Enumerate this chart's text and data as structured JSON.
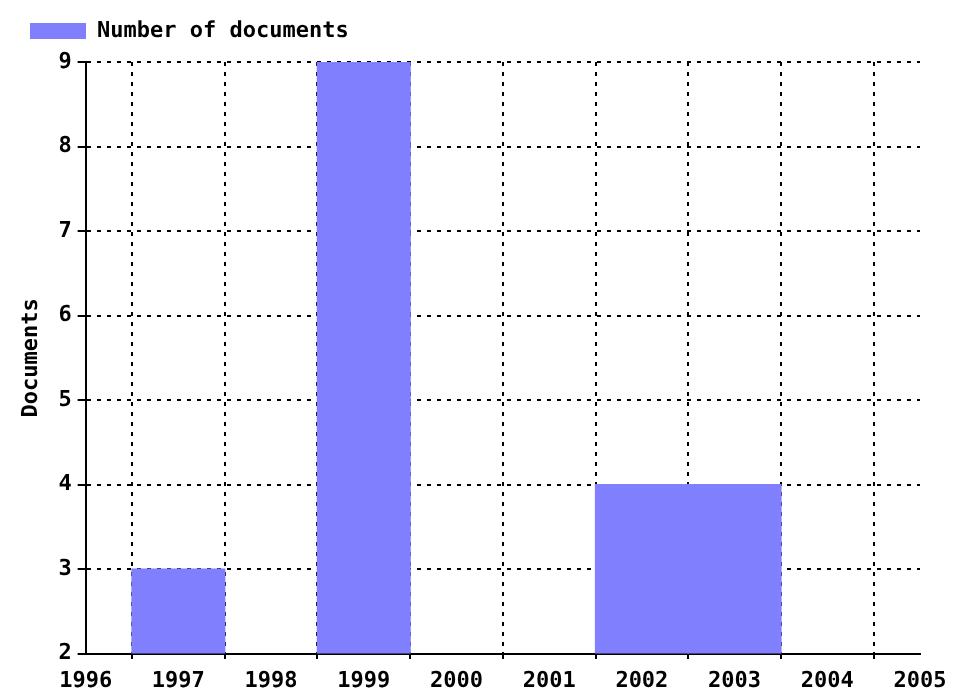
{
  "chart_data": {
    "type": "bar",
    "ylabel": "Documents",
    "x": [
      1997,
      1999,
      2002,
      2003
    ],
    "series": [
      {
        "name": "Number of documents",
        "color": "#8080ff",
        "values": [
          3,
          9,
          4,
          4
        ]
      }
    ],
    "xlim": [
      1996,
      2005
    ],
    "xticks": [
      1996,
      1997,
      1998,
      1999,
      2000,
      2001,
      2002,
      2003,
      2004,
      2005
    ],
    "ylim": [
      2,
      9
    ],
    "yticks": [
      2,
      3,
      4,
      5,
      6,
      7,
      8,
      9
    ],
    "grid": true,
    "legend": "top left",
    "line_style": "dotted"
  }
}
